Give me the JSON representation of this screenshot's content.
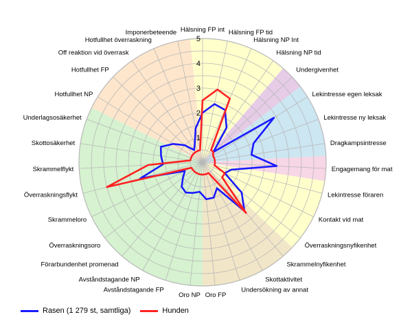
{
  "chart_data": {
    "type": "radar",
    "r_min": 0,
    "r_max": 5,
    "ticks": [
      "1",
      "2",
      "3",
      "4",
      "5"
    ],
    "tick_values": [
      1,
      2,
      3,
      4,
      5
    ],
    "categories": [
      "Hälsning FP int",
      "Hälsning FP tid",
      "Hälsning NP Int",
      "Hälsning NP tid",
      "Undergivenhet",
      "Lekintresse egen leksak",
      "Lekintresse ny leksak",
      "Dragkampsintresse",
      "Engagemang för mat",
      "Lekintresse föraren",
      "Kontakt vid mat",
      "Överraskningsnyfikenhet",
      "Skrammelnyfikenhet",
      "Skottaktivitet",
      "Undersökning av annat",
      "Oro FP",
      "Oro NP",
      "Avståndstagande FP",
      "Avståndstagande NP",
      "Förarbundenhet promenad",
      "Överraskningsoro",
      "Skrammeloro",
      "Överraskningsflykt",
      "Skrammelflykt",
      "Skottosäkerhet",
      "Underlagsosäkerhet",
      "Hotfullhet NP",
      "Hotfullhet FP",
      "Off reaktion vid överrask",
      "Hotfullhet överraskning",
      "Imponerbeteende"
    ],
    "series": [
      {
        "name": "Rasen (1 279 st, samtliga)",
        "color": "#1a1aff",
        "values": [
          2.0,
          2.4,
          2.3,
          1.7,
          0.6,
          3.4,
          2.2,
          2.0,
          3.0,
          1.2,
          1.0,
          2.0,
          2.6,
          1.2,
          1.5,
          1.5,
          1.2,
          1.3,
          1.4,
          1.3,
          1.0,
          0.8,
          2.6,
          1.6,
          1.7,
          1.8,
          1.4,
          1.0,
          0.6,
          0.8,
          1.4
        ]
      },
      {
        "name": "Hunden",
        "color": "#ff2222",
        "values": [
          2.5,
          3.0,
          2.8,
          0.6,
          0.6,
          0.5,
          0.5,
          0.5,
          0.5,
          0.5,
          1.0,
          1.0,
          2.7,
          0.5,
          0.5,
          0.5,
          0.5,
          0.5,
          0.5,
          0.5,
          0.5,
          0.5,
          4.0,
          2.2,
          0.5,
          0.5,
          0.5,
          0.5,
          0.5,
          0.5,
          0.5
        ]
      }
    ],
    "sectors": [
      {
        "from": 0,
        "to": 3,
        "color": "#ffffcc"
      },
      {
        "from": 4,
        "to": 4,
        "color": "#e6cce6"
      },
      {
        "from": 5,
        "to": 7,
        "color": "#cce6f2"
      },
      {
        "from": 8,
        "to": 8,
        "color": "#f7d6e6"
      },
      {
        "from": 9,
        "to": 11,
        "color": "#ffffcc"
      },
      {
        "from": 12,
        "to": 15,
        "color": "#f2e6c8"
      },
      {
        "from": 16,
        "to": 25,
        "color": "#d6f2d0"
      },
      {
        "from": 26,
        "to": 30,
        "color": "#fde6cc"
      }
    ],
    "grid": true,
    "legend_position": "bottom-left"
  }
}
